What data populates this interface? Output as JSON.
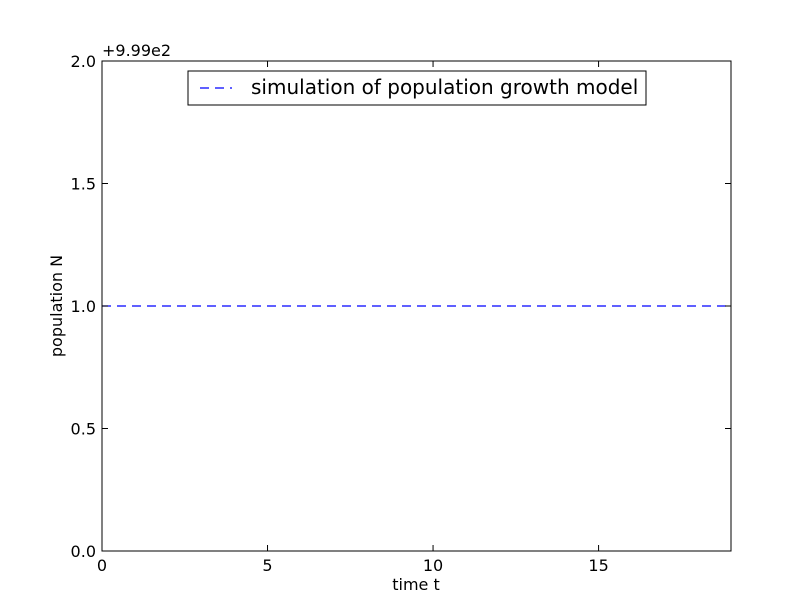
{
  "chart_data": {
    "type": "line",
    "xlabel": "time t",
    "ylabel": "population N",
    "y_offset_label": "+9.99e2",
    "xlim": [
      0,
      19
    ],
    "ylim": [
      0,
      2
    ],
    "x_ticks": [
      0,
      5,
      10,
      15
    ],
    "x_tick_labels": [
      "0",
      "5",
      "10",
      "15"
    ],
    "y_ticks": [
      0,
      0.5,
      1,
      1.5,
      2
    ],
    "y_tick_labels": [
      "0.0",
      "0.5",
      "1.0",
      "1.5",
      "2.0"
    ],
    "grid": false,
    "legend_position": "upper center",
    "series": [
      {
        "name": "simulation of population growth model",
        "color": "#0000ff",
        "line_style": "dashed",
        "x": [
          0,
          19
        ],
        "y": [
          1,
          1
        ]
      }
    ]
  }
}
